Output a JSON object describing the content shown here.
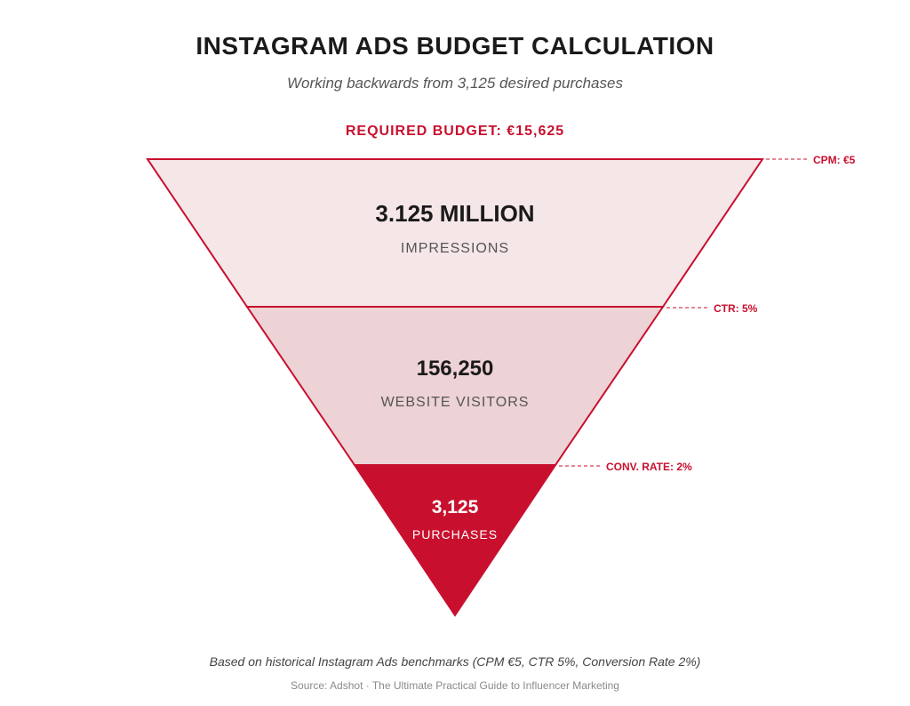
{
  "title": "INSTAGRAM ADS BUDGET CALCULATION",
  "subtitle": "Working backwards from 3,125 desired purchases",
  "budget_label": "REQUIRED BUDGET: €15,625",
  "stages": [
    {
      "value": "3.125 MILLION",
      "label": "IMPRESSIONS",
      "rate": "CPM: €5"
    },
    {
      "value": "156,250",
      "label": "WEBSITE VISITORS",
      "rate": "CTR: 5%"
    },
    {
      "value": "3,125",
      "label": "PURCHASES",
      "rate": "CONV. RATE: 2%"
    }
  ],
  "footnote": "Based on historical Instagram Ads benchmarks (CPM €5, CTR 5%, Conversion Rate 2%)",
  "source": "Source: Adshot · The Ultimate Practical Guide to Influencer Marketing",
  "colors": {
    "accent": "#c8102e",
    "stage_fills": [
      "#f5e6e8",
      "#edd2d6",
      "#c8102e"
    ],
    "outline": "#c8102e"
  }
}
